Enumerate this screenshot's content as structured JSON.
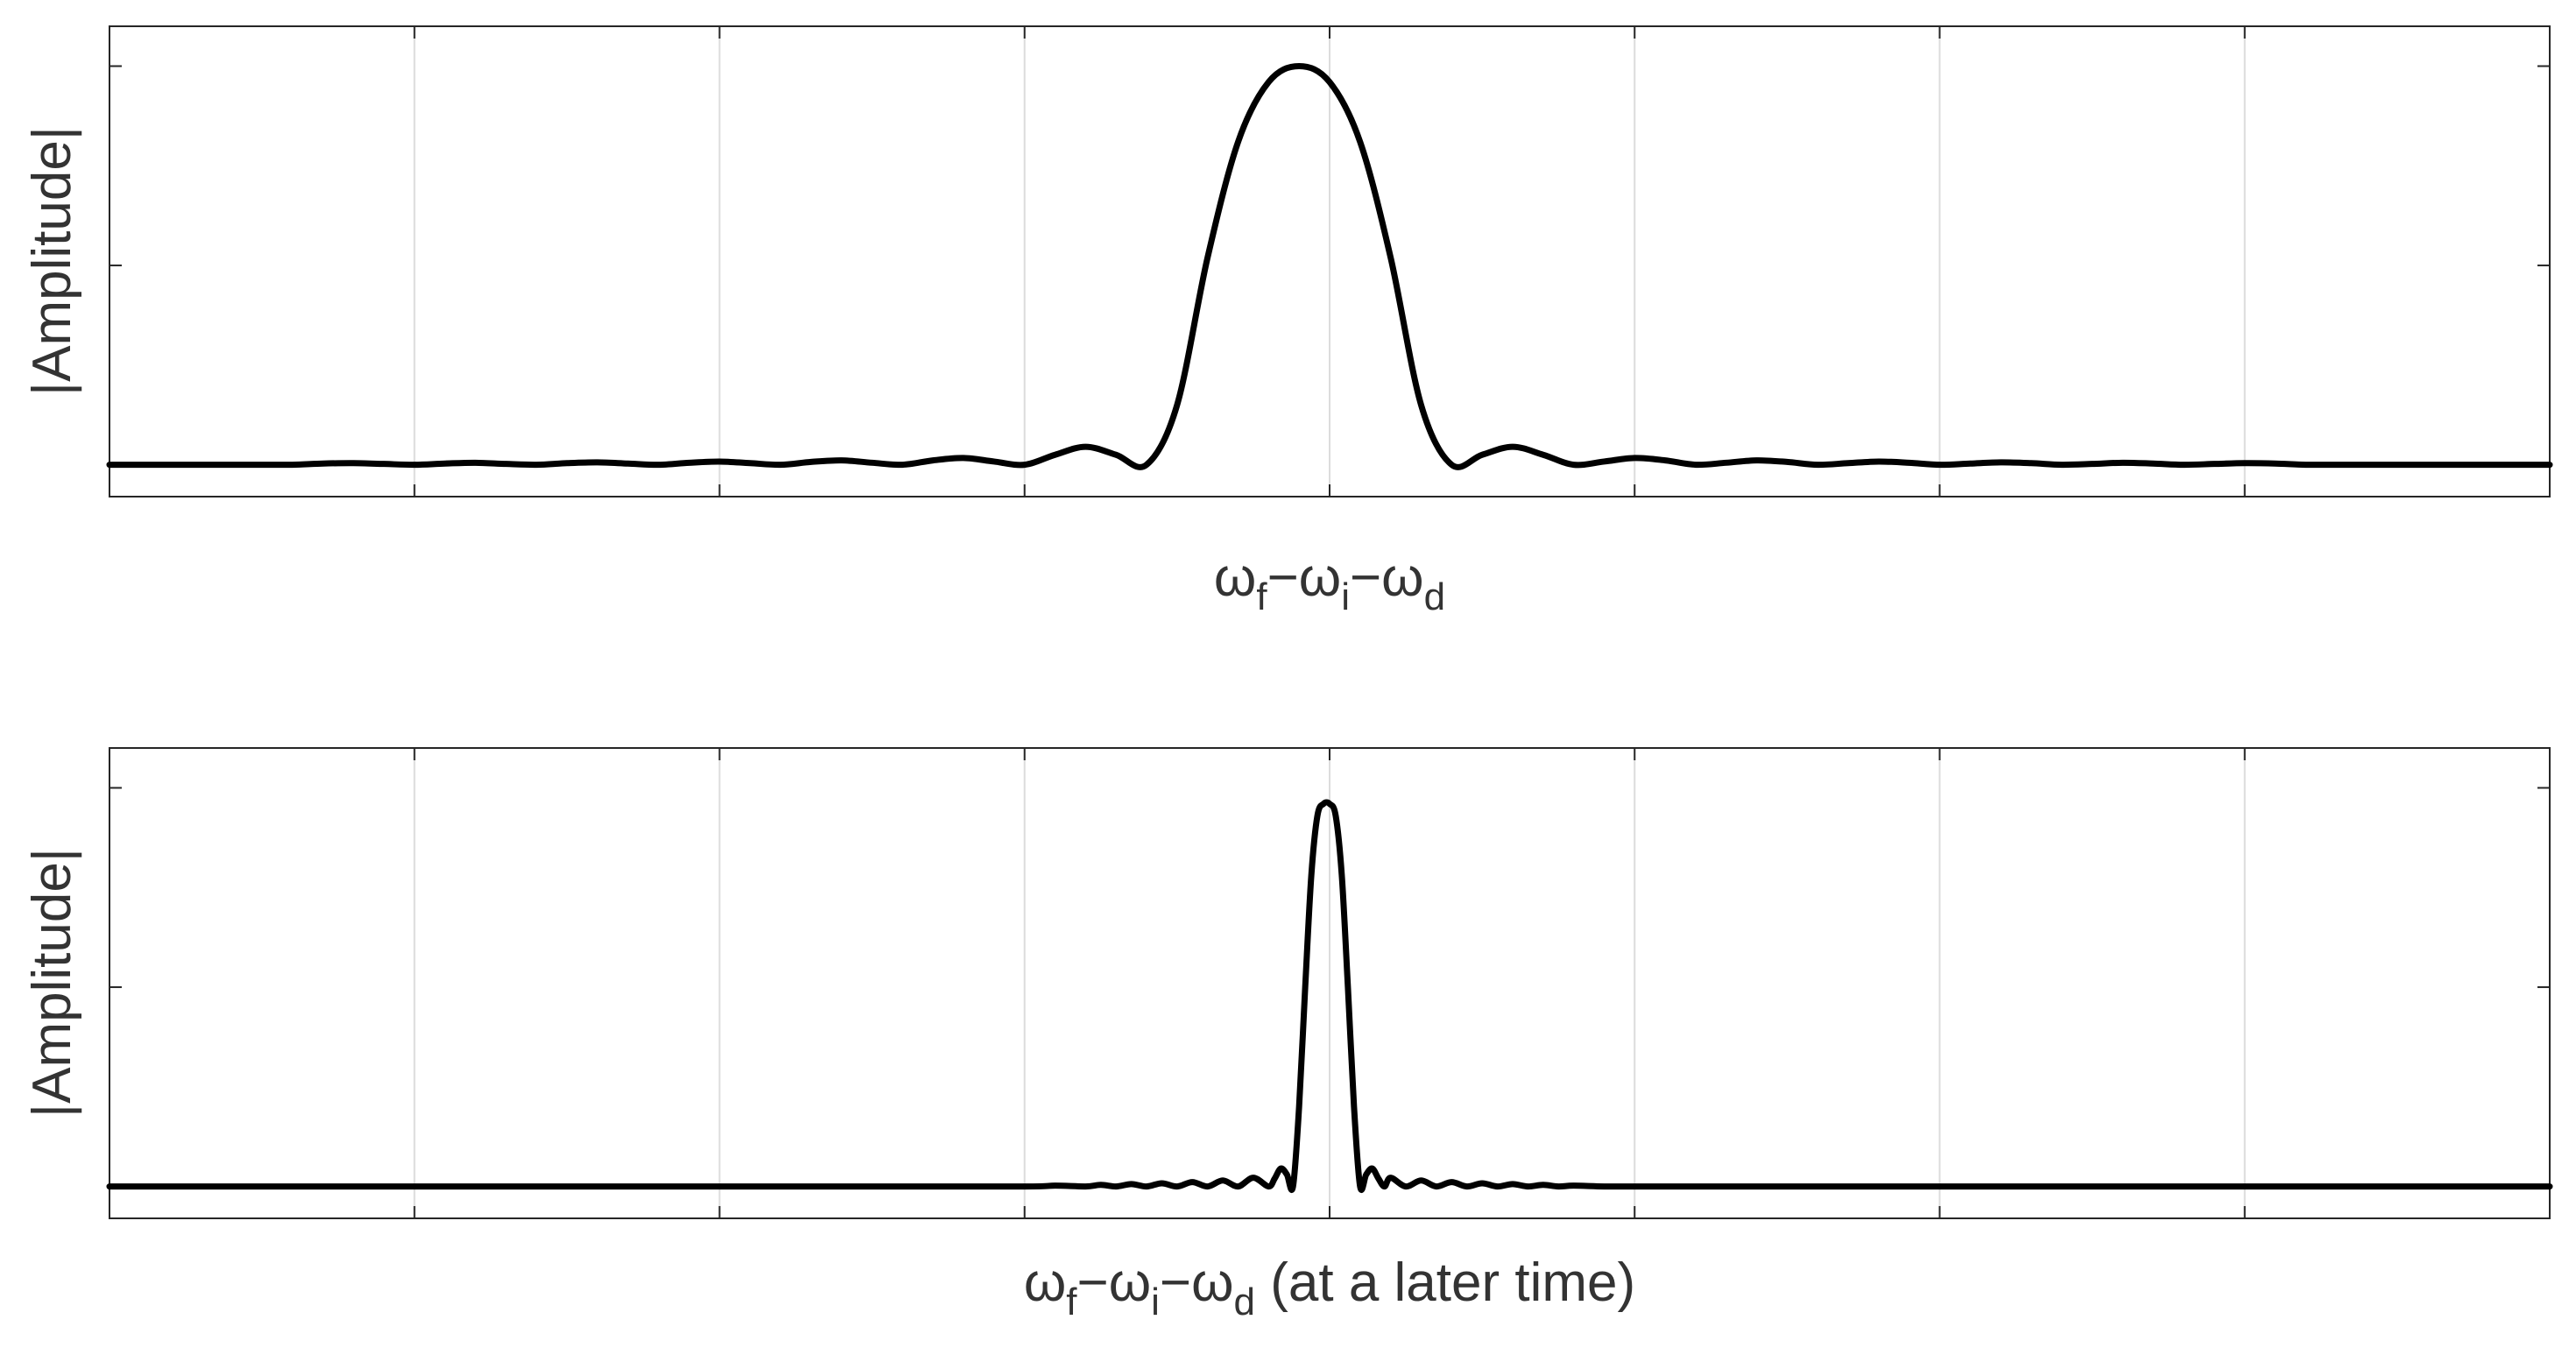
{
  "chart_data": [
    {
      "type": "line",
      "title": "",
      "ylabel": "|Amplitude|",
      "xlabel": {
        "parts": [
          {
            "text": "ω",
            "sub": "f"
          },
          {
            "text": "−ω",
            "sub": "i"
          },
          {
            "text": "−ω",
            "sub": "d"
          }
        ],
        "suffix": ""
      },
      "xlim": [
        -4,
        4
      ],
      "ylim": [
        -0.08,
        1.1
      ],
      "xticks": [
        -3,
        -2,
        -1,
        0,
        1,
        2,
        3
      ],
      "yticks": [
        0,
        0.5,
        1
      ],
      "grid": "vertical",
      "tick_labels_shown": false,
      "series": [
        {
          "color": "#000000",
          "x": [
            -4.0,
            -3.9,
            -3.8,
            -3.7,
            -3.6,
            -3.5,
            -3.4,
            -3.3,
            -3.2,
            -3.1,
            -3.0,
            -2.9,
            -2.8,
            -2.7,
            -2.6,
            -2.5,
            -2.4,
            -2.3,
            -2.2,
            -2.1,
            -2.0,
            -1.9,
            -1.8,
            -1.7,
            -1.6,
            -1.5,
            -1.4,
            -1.3,
            -1.2,
            -1.1,
            -1.0,
            -0.9,
            -0.8,
            -0.7,
            -0.6,
            -0.5,
            -0.4,
            -0.3,
            -0.2,
            -0.1,
            0.0,
            0.1,
            0.2,
            0.3,
            0.4,
            0.5,
            0.6,
            0.7,
            0.8,
            0.9,
            1.0,
            1.1,
            1.2,
            1.3,
            1.4,
            1.5,
            1.6,
            1.7,
            1.8,
            1.9,
            2.0,
            2.1,
            2.2,
            2.3,
            2.4,
            2.5,
            2.6,
            2.7,
            2.8,
            2.9,
            3.0,
            3.1,
            3.2,
            3.3,
            3.4,
            3.5,
            3.6,
            3.7,
            3.8,
            3.9,
            4.0
          ],
          "y": [
            0.0,
            0.0,
            0.0,
            0.0,
            0.0,
            0.0,
            0.0,
            0.003,
            0.004,
            0.002,
            0.0,
            0.003,
            0.005,
            0.002,
            0.0,
            0.004,
            0.006,
            0.003,
            0.0,
            0.005,
            0.008,
            0.004,
            0.0,
            0.007,
            0.011,
            0.005,
            0.0,
            0.011,
            0.017,
            0.008,
            0.0,
            0.025,
            0.045,
            0.025,
            0.0,
            0.15,
            0.52,
            0.81,
            0.96,
            1.0,
            0.96,
            0.81,
            0.52,
            0.15,
            0.0,
            0.025,
            0.045,
            0.025,
            0.0,
            0.008,
            0.017,
            0.011,
            0.0,
            0.005,
            0.011,
            0.007,
            0.0,
            0.004,
            0.008,
            0.005,
            0.0,
            0.003,
            0.006,
            0.004,
            0.0,
            0.002,
            0.005,
            0.003,
            0.0,
            0.002,
            0.004,
            0.003,
            0.0,
            0.0,
            0.0,
            0.0,
            0.0,
            0.0,
            0.0,
            0.0,
            0.0
          ]
        }
      ]
    },
    {
      "type": "line",
      "title": "",
      "ylabel": "|Amplitude|",
      "xlabel": {
        "parts": [
          {
            "text": "ω",
            "sub": "f"
          },
          {
            "text": "−ω",
            "sub": "i"
          },
          {
            "text": "−ω",
            "sub": "d"
          }
        ],
        "suffix": " (at a later time)"
      },
      "xlim": [
        -4,
        4
      ],
      "ylim": [
        -0.08,
        1.1
      ],
      "xticks": [
        -3,
        -2,
        -1,
        0,
        1,
        2,
        3
      ],
      "yticks": [
        0,
        0.5,
        1
      ],
      "grid": "vertical",
      "tick_labels_shown": false,
      "series": [
        {
          "color": "#000000",
          "x": [
            -4.0,
            -3.5,
            -3.0,
            -2.5,
            -2.0,
            -1.5,
            -1.0,
            -0.9,
            -0.8,
            -0.75,
            -0.7,
            -0.65,
            -0.6,
            -0.55,
            -0.5,
            -0.45,
            -0.4,
            -0.35,
            -0.3,
            -0.25,
            -0.2,
            -0.18,
            -0.16,
            -0.14,
            -0.12,
            -0.1,
            -0.08,
            -0.06,
            -0.04,
            -0.02,
            0.0,
            0.02,
            0.04,
            0.06,
            0.08,
            0.1,
            0.12,
            0.14,
            0.16,
            0.18,
            0.2,
            0.25,
            0.3,
            0.35,
            0.4,
            0.45,
            0.5,
            0.55,
            0.6,
            0.65,
            0.7,
            0.75,
            0.8,
            0.9,
            1.0,
            1.5,
            2.0,
            2.5,
            3.0,
            3.5,
            4.0
          ],
          "y": [
            0.0,
            0.0,
            0.0,
            0.0,
            0.0,
            0.0,
            0.0,
            0.002,
            0.0,
            0.004,
            0.0,
            0.006,
            0.0,
            0.008,
            0.0,
            0.011,
            0.0,
            0.015,
            0.0,
            0.022,
            0.0,
            0.02,
            0.045,
            0.03,
            0.0,
            0.2,
            0.5,
            0.78,
            0.93,
            0.96,
            0.96,
            0.93,
            0.78,
            0.5,
            0.2,
            0.0,
            0.03,
            0.045,
            0.02,
            0.0,
            0.022,
            0.0,
            0.015,
            0.0,
            0.011,
            0.0,
            0.008,
            0.0,
            0.006,
            0.0,
            0.004,
            0.0,
            0.002,
            0.0,
            0.0,
            0.0,
            0.0,
            0.0,
            0.0,
            0.0,
            0.0
          ]
        }
      ]
    }
  ]
}
